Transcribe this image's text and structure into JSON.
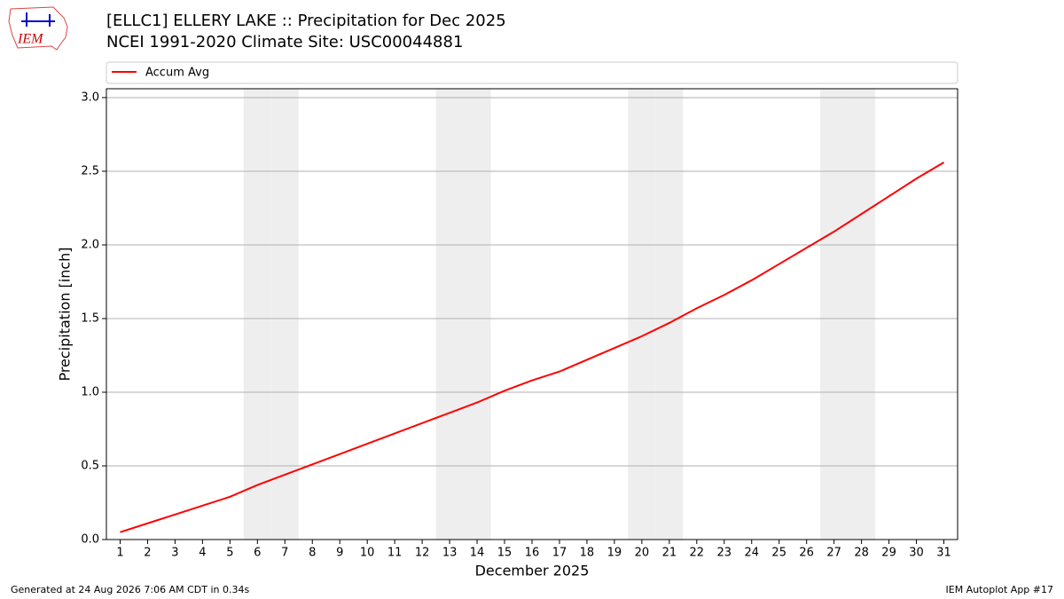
{
  "logo_text": "IEM",
  "footer_left": "Generated at 24 Aug 2026 7:06 AM CDT in 0.34s",
  "footer_right": "IEM Autoplot App #17",
  "chart_data": {
    "type": "line",
    "title": "[ELLC1] ELLERY LAKE :: Precipitation for Dec 2025",
    "subtitle": "NCEI 1991-2020 Climate Site: USC00044881",
    "x_label": "December 2025",
    "y_label": "Precipitation [inch]",
    "x": [
      1,
      2,
      3,
      4,
      5,
      6,
      7,
      8,
      9,
      10,
      11,
      12,
      13,
      14,
      15,
      16,
      17,
      18,
      19,
      20,
      21,
      22,
      23,
      24,
      25,
      26,
      27,
      28,
      29,
      30,
      31
    ],
    "series": [
      {
        "name": "Accum Avg",
        "color": "#ff0000",
        "values": [
          0.05,
          0.11,
          0.17,
          0.23,
          0.29,
          0.37,
          0.44,
          0.51,
          0.58,
          0.65,
          0.72,
          0.79,
          0.86,
          0.93,
          1.01,
          1.08,
          1.14,
          1.22,
          1.3,
          1.38,
          1.47,
          1.57,
          1.66,
          1.76,
          1.87,
          1.98,
          2.09,
          2.21,
          2.33,
          2.45,
          2.56
        ]
      }
    ],
    "weekend_days": [
      6,
      7,
      13,
      14,
      20,
      21,
      27,
      28
    ],
    "weekend_color": "#eeeeee",
    "xlim": [
      0.5,
      31.5
    ],
    "xticks": [
      1,
      2,
      3,
      4,
      5,
      6,
      7,
      8,
      9,
      10,
      11,
      12,
      13,
      14,
      15,
      16,
      17,
      18,
      19,
      20,
      21,
      22,
      23,
      24,
      25,
      26,
      27,
      28,
      29,
      30,
      31
    ],
    "ylim": [
      0,
      3.06
    ],
    "yticks": [
      {
        "value": 0,
        "label": "0.0"
      },
      0.5,
      {
        "value": 1,
        "label": "1.0"
      },
      1.5,
      {
        "value": 2,
        "label": "2.0"
      },
      2.5,
      {
        "value": 3,
        "label": "3.0"
      }
    ],
    "grid": true,
    "legend": "top"
  }
}
